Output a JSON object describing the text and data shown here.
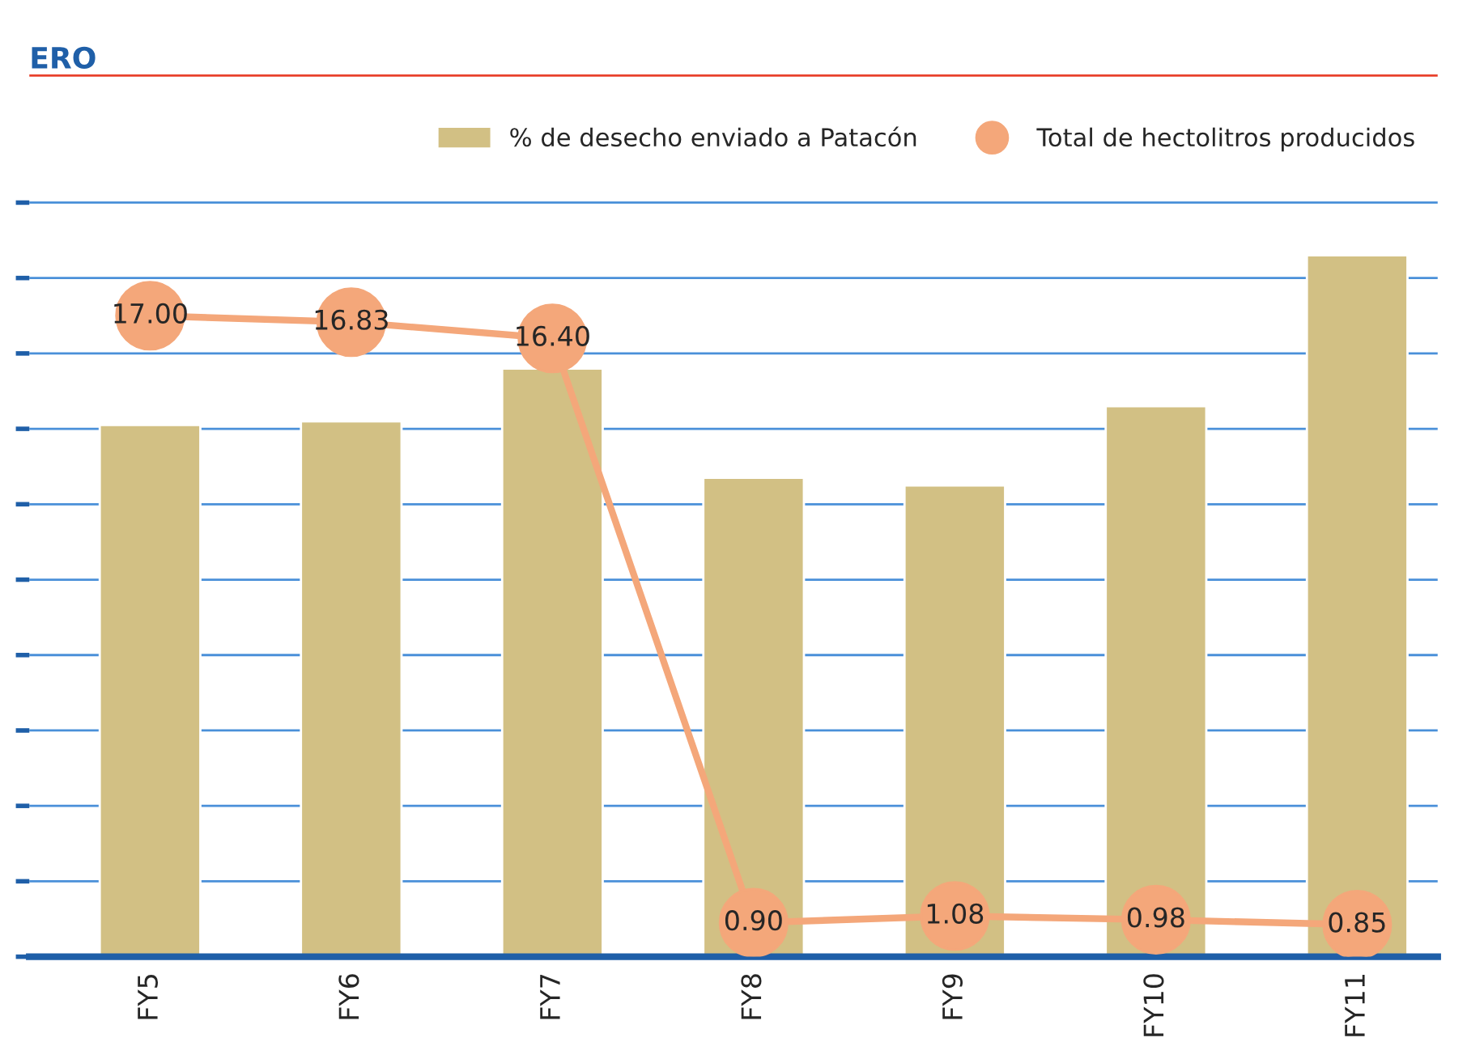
{
  "chart_data": {
    "type": "bar",
    "categories": [
      "FY5",
      "FY6",
      "FY7",
      "FY8",
      "FY9",
      "FY10",
      "FY11"
    ],
    "series": [
      {
        "name": "% de desecho enviado a Patacón",
        "color": "#d2c084",
        "values": [
          14.1,
          14.2,
          15.6,
          12.7,
          12.5,
          14.6,
          18.6
        ]
      },
      {
        "name": "Total de hectolitros producidos",
        "type": "line",
        "color": "#f4a77a",
        "values": [
          17.0,
          16.83,
          16.4,
          0.9,
          1.08,
          0.98,
          0.85
        ],
        "value_labels": [
          "17.00",
          "16.83",
          "16.40",
          "0.90",
          "1.08",
          "0.98",
          "0.85"
        ]
      }
    ],
    "ylim": [
      0,
      23.4
    ],
    "yticks": [
      {
        "value": 0,
        "label": null
      },
      {
        "value": 2,
        "label": null
      },
      {
        "value": 4,
        "label": null
      },
      {
        "value": 6,
        "label": null
      },
      {
        "value": 8,
        "label": null
      },
      {
        "value": 10,
        "label": null
      },
      {
        "value": 12,
        "label": null
      },
      {
        "value": 14,
        "label": null
      },
      {
        "value": 16,
        "label": null
      },
      {
        "value": 18,
        "label": null
      },
      {
        "value": 20,
        "label": null
      }
    ],
    "ref_lines": [
      {
        "axis": "y",
        "value": 23.4,
        "label": "ERO",
        "color": "#e8412c"
      }
    ],
    "grid": "y",
    "legend": "top right",
    "marker": "circle",
    "line_style": "solid",
    "tick_labels": "x"
  }
}
